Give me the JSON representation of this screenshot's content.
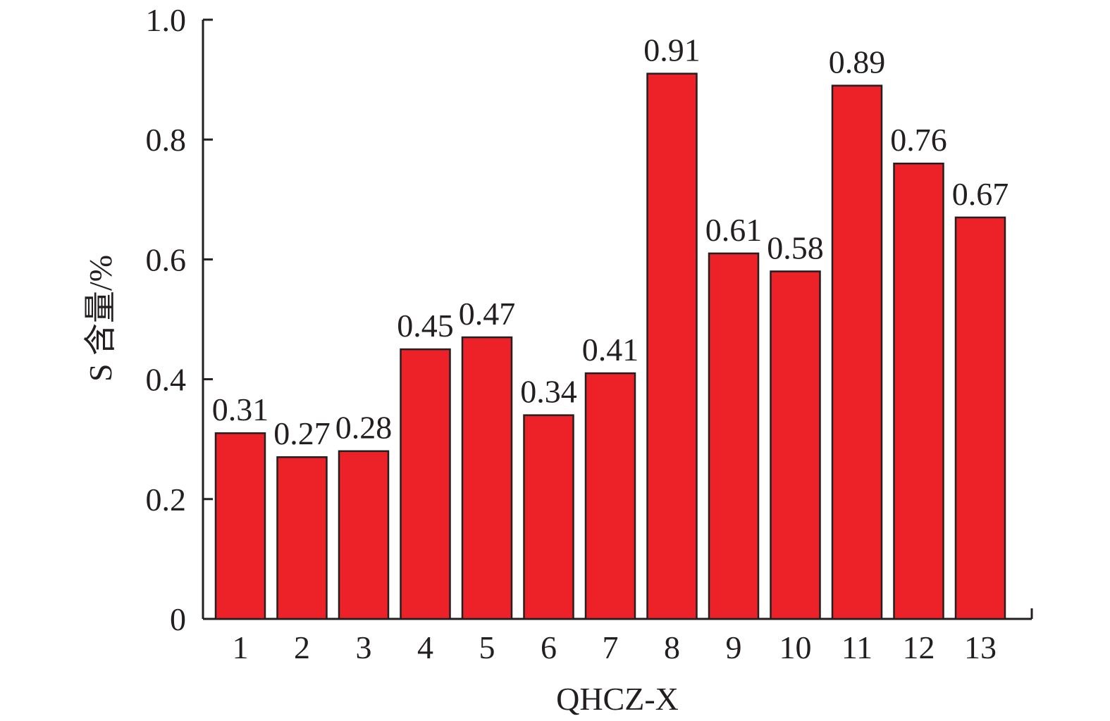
{
  "chart_data": {
    "type": "bar",
    "title": "",
    "xlabel": "QHCZ-X",
    "ylabel": "S 含量/%",
    "categories": [
      "1",
      "2",
      "3",
      "4",
      "5",
      "6",
      "7",
      "8",
      "9",
      "10",
      "11",
      "12",
      "13"
    ],
    "values": [
      0.31,
      0.27,
      0.28,
      0.45,
      0.47,
      0.34,
      0.41,
      0.91,
      0.61,
      0.58,
      0.89,
      0.76,
      0.67
    ],
    "value_labels": [
      "0.31",
      "0.27",
      "0.28",
      "0.45",
      "0.47",
      "0.34",
      "0.41",
      "0.91",
      "0.61",
      "0.58",
      "0.89",
      "0.76",
      "0.67"
    ],
    "ylim": [
      0,
      1.0
    ],
    "yticks": [
      0,
      0.2,
      0.4,
      0.6,
      0.8,
      1.0
    ],
    "ytick_labels": [
      "0",
      "0.2",
      "0.4",
      "0.6",
      "0.8",
      "1.0"
    ],
    "grid": false,
    "bar_color": "#ed2229",
    "edge_color": "#231f20"
  }
}
